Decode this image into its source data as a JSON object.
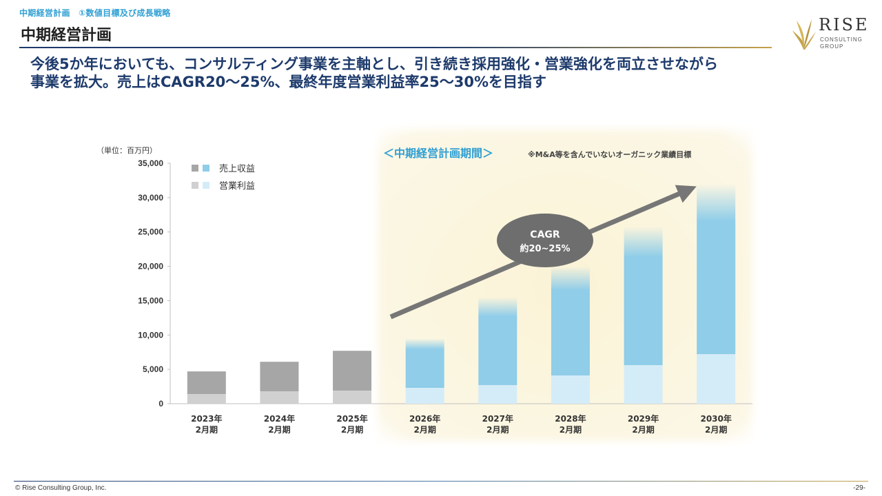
{
  "header": {
    "breadcrumb": "中期経営計画　①数値目標及び成長戦略",
    "title": "中期経営計画"
  },
  "logo": {
    "name": "RISE",
    "subtitle_line1": "CONSULTING",
    "subtitle_line2": "GROUP"
  },
  "headline": {
    "line1": "今後5か年においても、コンサルティング事業を主軸とし、引き続き採用強化・営業強化を両立させながら",
    "line2": "事業を拡大。売上はCAGR20～25%、最終年度営業利益率25～30%を目指す"
  },
  "chart_data": {
    "type": "bar",
    "unit_label": "（単位：百万円）",
    "period_label": "＜中期経営計画期間＞",
    "note": "※M&A等を含んでいないオーガニック業績目標",
    "categories": [
      [
        "2023年",
        "2月期"
      ],
      [
        "2024年",
        "2月期"
      ],
      [
        "2025年",
        "2月期"
      ],
      [
        "2026年",
        "2月期"
      ],
      [
        "2027年",
        "2月期"
      ],
      [
        "2028年",
        "2月期"
      ],
      [
        "2029年",
        "2月期"
      ],
      [
        "2030年",
        "2月期"
      ]
    ],
    "forecast_start_index": 3,
    "ylim": [
      0,
      35000
    ],
    "yticks": [
      "0",
      "5,000",
      "10,000",
      "15,000",
      "20,000",
      "25,000",
      "30,000",
      "35,000"
    ],
    "ytick_values": [
      0,
      5000,
      10000,
      15000,
      20000,
      25000,
      30000,
      35000
    ],
    "series": [
      {
        "name": "売上収益",
        "values": [
          4700,
          6100,
          7700,
          9500,
          15500,
          20000,
          25800,
          32000
        ]
      },
      {
        "name": "営業利益",
        "values": [
          1400,
          1800,
          1900,
          2300,
          2700,
          4100,
          5600,
          7200
        ]
      }
    ],
    "colors": {
      "actual_revenue": "#a6a6a6",
      "actual_profit": "#d0d0d0",
      "forecast_revenue": "#8fcde9",
      "forecast_profit": "#d4ecf8",
      "period_bg": "#fbf5e0",
      "arrow": "#767676",
      "cagr_bubble": "#6e6e6e"
    },
    "cagr": {
      "line1": "CAGR",
      "line2": "約20~25%"
    },
    "grid": false,
    "legend": "top-left"
  },
  "footer": {
    "copyright": "© Rise Consulting Group, Inc.",
    "page": "-29-"
  }
}
